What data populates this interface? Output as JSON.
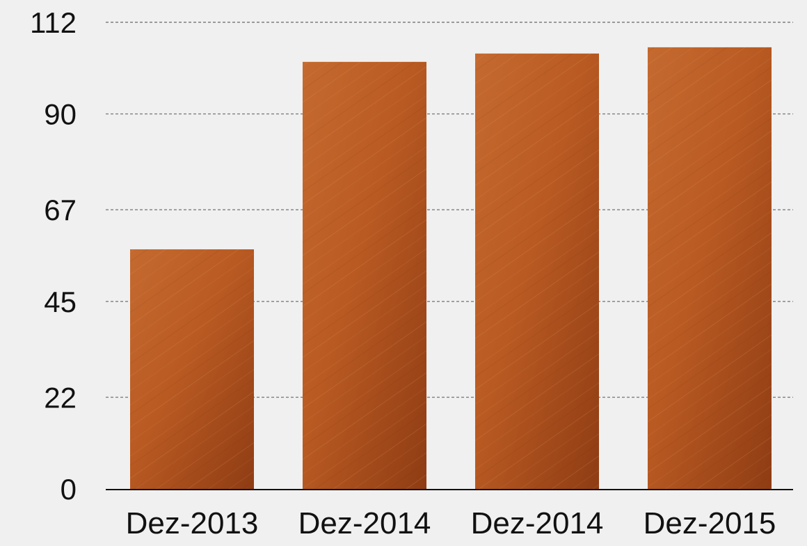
{
  "chart_data": {
    "type": "bar",
    "title": "",
    "xlabel": "",
    "ylabel": "",
    "categories": [
      "Dez-2013",
      "Dez-2014",
      "Dez-2014",
      "Dez-2015"
    ],
    "values": [
      57.5,
      102.5,
      104.5,
      106
    ],
    "yticks": [
      "0",
      "22",
      "45",
      "67",
      "90",
      "112"
    ],
    "ylim": [
      0,
      112
    ],
    "grid": true,
    "legend": "none",
    "colors": {
      "bar_light": "#c96a2c",
      "bar_mid": "#b4561f",
      "bar_dark": "#8e3a12",
      "background": "#f0f0f0",
      "text": "#111111"
    }
  }
}
